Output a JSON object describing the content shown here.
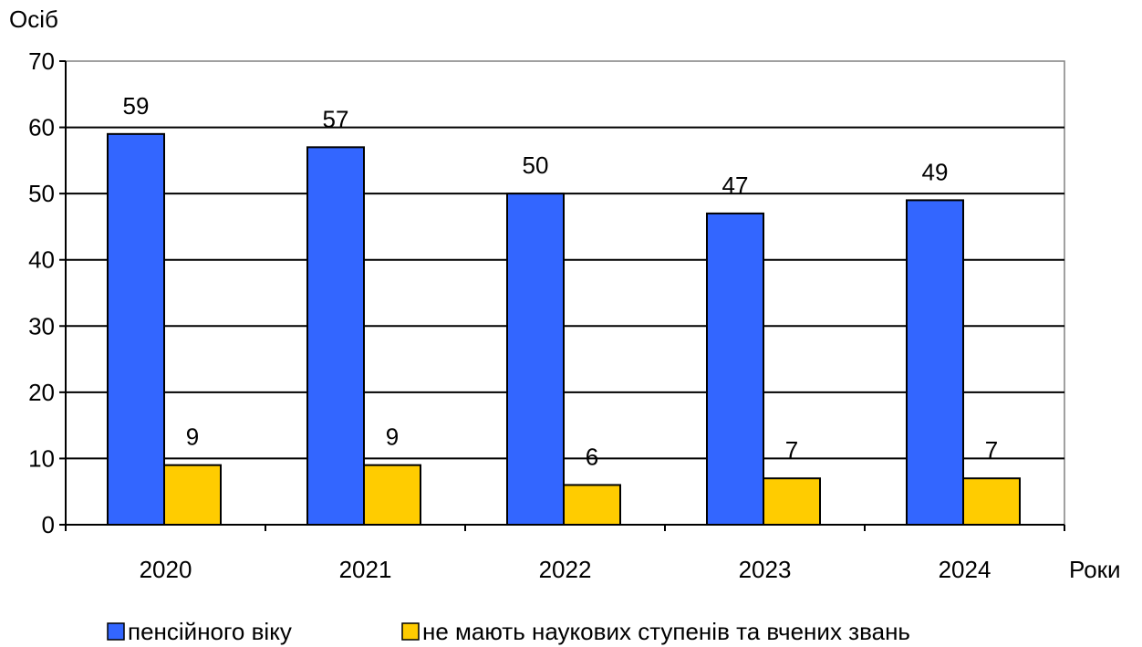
{
  "chart_data": {
    "type": "bar",
    "ylabel": "Осіб",
    "xlabel": "Роки",
    "categories": [
      "2020",
      "2021",
      "2022",
      "2023",
      "2024"
    ],
    "yticks": [
      0,
      10,
      20,
      30,
      40,
      50,
      60,
      70
    ],
    "ylim": [
      0,
      70
    ],
    "grid": true,
    "legend": "bottom",
    "series": [
      {
        "name": "пенсійного віку",
        "color": "#3366FF",
        "values": [
          59,
          57,
          50,
          47,
          49
        ]
      },
      {
        "name": "не мають наукових ступенів та вчених звань",
        "color": "#FFCC00",
        "values": [
          9,
          9,
          6,
          7,
          7
        ]
      }
    ]
  }
}
